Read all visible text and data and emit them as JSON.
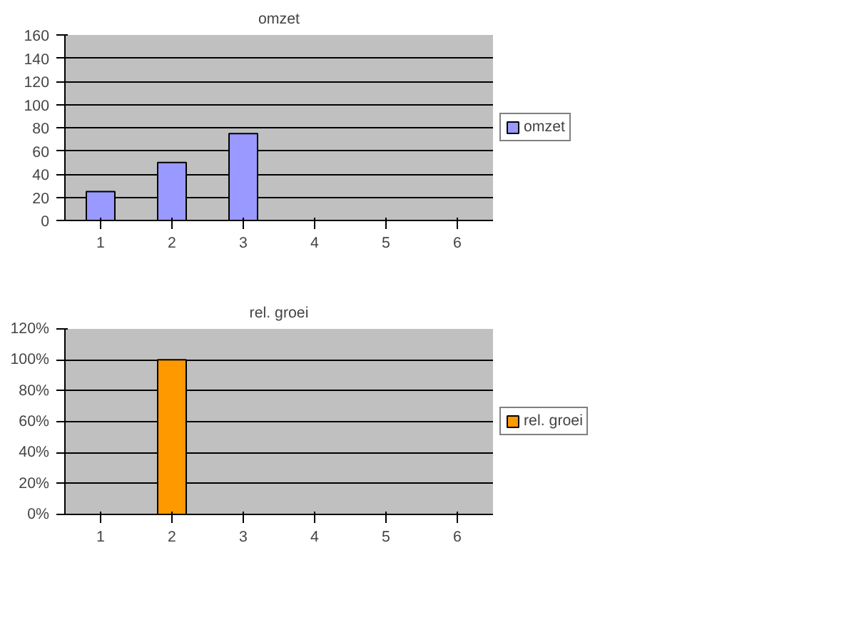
{
  "chart_data": [
    {
      "type": "bar",
      "title": "omzet",
      "categories": [
        "1",
        "2",
        "3",
        "4",
        "5",
        "6"
      ],
      "series": [
        {
          "name": "omzet",
          "color": "#9999ff",
          "values": [
            25,
            50,
            75,
            null,
            null,
            null
          ]
        }
      ],
      "ylim": [
        0,
        160
      ],
      "yticks": [
        0,
        20,
        40,
        60,
        80,
        100,
        120,
        140,
        160
      ],
      "grid": "y",
      "legend": "right"
    },
    {
      "type": "bar",
      "title": "rel. groei",
      "categories": [
        "1",
        "2",
        "3",
        "4",
        "5",
        "6"
      ],
      "series": [
        {
          "name": "rel. groei",
          "color": "#ff9900",
          "values": [
            null,
            100,
            null,
            null,
            null,
            null
          ]
        }
      ],
      "ylim": [
        0,
        120
      ],
      "yticks": [
        {
          "value": 0,
          "label": "0%"
        },
        {
          "value": 20,
          "label": "20%"
        },
        {
          "value": 40,
          "label": "40%"
        },
        {
          "value": 60,
          "label": "60%"
        },
        {
          "value": 80,
          "label": "80%"
        },
        {
          "value": 100,
          "label": "100%"
        },
        {
          "value": 120,
          "label": "120%"
        }
      ],
      "grid": "y",
      "legend": "right"
    }
  ]
}
